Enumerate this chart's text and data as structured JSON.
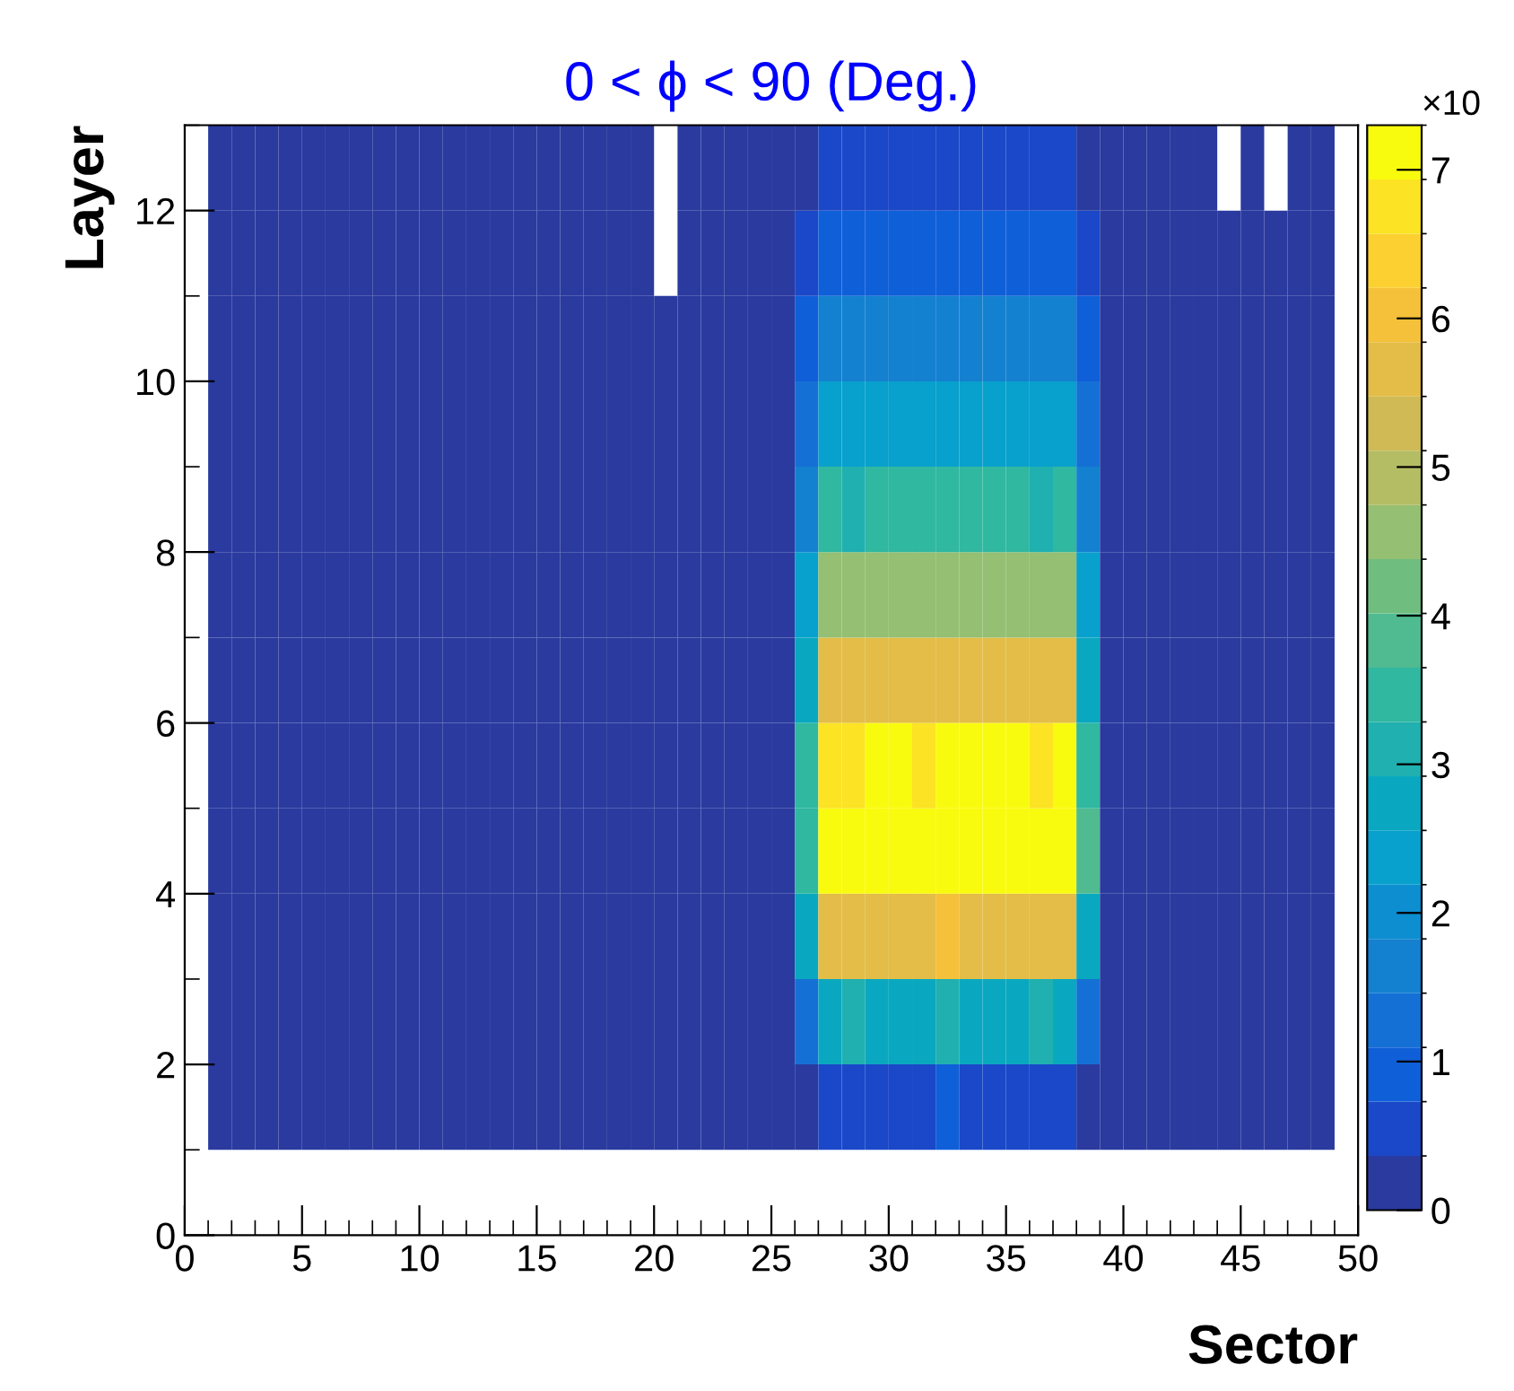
{
  "chart_data": {
    "type": "heatmap",
    "title": "0 < ϕ < 90 (Deg.)",
    "xlabel": "Sector",
    "ylabel": "Layer",
    "clabel": "×10",
    "x": [
      1.5,
      2.5,
      3.5,
      4.5,
      5.5,
      6.5,
      7.5,
      8.5,
      9.5,
      10.5,
      11.5,
      12.5,
      13.5,
      14.5,
      15.5,
      16.5,
      17.5,
      18.5,
      19.5,
      20.5,
      21.5,
      22.5,
      23.5,
      24.5,
      25.5,
      26.5,
      27.5,
      28.5,
      29.5,
      30.5,
      31.5,
      32.5,
      33.5,
      34.5,
      35.5,
      36.5,
      37.5,
      38.5,
      39.5,
      40.5,
      41.5,
      42.5,
      43.5,
      44.5,
      45.5,
      46.5,
      47.5,
      48.5
    ],
    "y": [
      12.5,
      11.5,
      10.5,
      9.5,
      8.5,
      7.5,
      6.5,
      5.5,
      4.5,
      3.5,
      2.5,
      1.5
    ],
    "cells": [
      [
        0.15,
        0.15,
        0.15,
        0.15,
        0.15,
        0.15,
        0.15,
        0.15,
        0.15,
        0.15,
        0.15,
        0.15,
        0.15,
        0.15,
        0.15,
        0.15,
        0.15,
        0.15,
        0.15,
        null,
        0.15,
        0.15,
        0.15,
        0.15,
        0.15,
        0.15,
        0.5,
        0.5,
        0.5,
        0.5,
        0.5,
        0.5,
        0.5,
        0.5,
        0.5,
        0.5,
        0.5,
        0.15,
        0.15,
        0.15,
        0.15,
        0.15,
        0.15,
        null,
        0.15,
        null,
        0.15,
        0.15
      ],
      [
        0.15,
        0.15,
        0.15,
        0.15,
        0.15,
        0.15,
        0.15,
        0.15,
        0.15,
        0.15,
        0.15,
        0.15,
        0.15,
        0.15,
        0.15,
        0.15,
        0.15,
        0.15,
        0.15,
        null,
        0.15,
        0.15,
        0.15,
        0.15,
        0.15,
        0.5,
        0.9,
        0.9,
        0.9,
        0.9,
        0.9,
        0.9,
        0.9,
        0.9,
        0.9,
        0.9,
        0.9,
        0.5,
        0.15,
        0.15,
        0.15,
        0.15,
        0.15,
        0.15,
        0.15,
        0.15,
        0.15,
        0.15
      ],
      [
        0.15,
        0.15,
        0.15,
        0.15,
        0.15,
        0.15,
        0.15,
        0.15,
        0.15,
        0.15,
        0.15,
        0.15,
        0.15,
        0.15,
        0.15,
        0.15,
        0.15,
        0.15,
        0.15,
        0.15,
        0.15,
        0.15,
        0.15,
        0.15,
        0.15,
        0.9,
        1.6,
        1.6,
        1.6,
        1.6,
        1.6,
        1.6,
        1.6,
        1.6,
        1.6,
        1.6,
        1.6,
        0.9,
        0.15,
        0.15,
        0.15,
        0.15,
        0.15,
        0.15,
        0.15,
        0.15,
        0.15,
        0.15
      ],
      [
        0.15,
        0.15,
        0.15,
        0.15,
        0.15,
        0.15,
        0.15,
        0.15,
        0.15,
        0.15,
        0.15,
        0.15,
        0.15,
        0.15,
        0.15,
        0.15,
        0.15,
        0.15,
        0.15,
        0.15,
        0.15,
        0.15,
        0.15,
        0.15,
        0.15,
        1.2,
        2.35,
        2.35,
        2.35,
        2.35,
        2.35,
        2.35,
        2.35,
        2.35,
        2.35,
        2.35,
        2.35,
        1.2,
        0.15,
        0.15,
        0.15,
        0.15,
        0.15,
        0.15,
        0.15,
        0.15,
        0.15,
        0.15
      ],
      [
        0.15,
        0.15,
        0.15,
        0.15,
        0.15,
        0.15,
        0.15,
        0.15,
        0.15,
        0.15,
        0.15,
        0.15,
        0.15,
        0.15,
        0.15,
        0.15,
        0.15,
        0.15,
        0.15,
        0.15,
        0.15,
        0.15,
        0.15,
        0.15,
        0.15,
        1.6,
        3.45,
        3.1,
        3.45,
        3.45,
        3.45,
        3.45,
        3.45,
        3.45,
        3.45,
        3.1,
        3.45,
        1.6,
        0.15,
        0.15,
        0.15,
        0.15,
        0.15,
        0.15,
        0.15,
        0.15,
        0.15,
        0.15
      ],
      [
        0.15,
        0.15,
        0.15,
        0.15,
        0.15,
        0.15,
        0.15,
        0.15,
        0.15,
        0.15,
        0.15,
        0.15,
        0.15,
        0.15,
        0.15,
        0.15,
        0.15,
        0.15,
        0.15,
        0.15,
        0.15,
        0.15,
        0.15,
        0.15,
        0.15,
        2.35,
        4.5,
        4.5,
        4.5,
        4.5,
        4.5,
        4.5,
        4.5,
        4.5,
        4.5,
        4.5,
        4.5,
        2.35,
        0.15,
        0.15,
        0.15,
        0.15,
        0.15,
        0.15,
        0.15,
        0.15,
        0.15,
        0.15
      ],
      [
        0.15,
        0.15,
        0.15,
        0.15,
        0.15,
        0.15,
        0.15,
        0.15,
        0.15,
        0.15,
        0.15,
        0.15,
        0.15,
        0.15,
        0.15,
        0.15,
        0.15,
        0.15,
        0.15,
        0.15,
        0.15,
        0.15,
        0.15,
        0.15,
        0.15,
        2.7,
        5.6,
        5.6,
        5.6,
        5.6,
        5.6,
        5.6,
        5.6,
        5.6,
        5.6,
        5.6,
        5.6,
        2.7,
        0.15,
        0.15,
        0.15,
        0.15,
        0.15,
        0.15,
        0.15,
        0.15,
        0.15,
        0.15
      ],
      [
        0.15,
        0.15,
        0.15,
        0.15,
        0.15,
        0.15,
        0.15,
        0.15,
        0.15,
        0.15,
        0.15,
        0.15,
        0.15,
        0.15,
        0.15,
        0.15,
        0.15,
        0.15,
        0.15,
        0.15,
        0.15,
        0.15,
        0.15,
        0.15,
        0.15,
        3.45,
        6.7,
        6.7,
        7.1,
        7.1,
        6.7,
        7.1,
        7.1,
        7.1,
        7.1,
        6.7,
        7.1,
        3.45,
        0.15,
        0.15,
        0.15,
        0.15,
        0.15,
        0.15,
        0.15,
        0.15,
        0.15,
        0.15
      ],
      [
        0.15,
        0.15,
        0.15,
        0.15,
        0.15,
        0.15,
        0.15,
        0.15,
        0.15,
        0.15,
        0.15,
        0.15,
        0.15,
        0.15,
        0.15,
        0.15,
        0.15,
        0.15,
        0.15,
        0.15,
        0.15,
        0.15,
        0.15,
        0.15,
        0.15,
        3.45,
        7.1,
        7.1,
        7.1,
        7.1,
        7.1,
        7.1,
        7.1,
        7.1,
        7.1,
        7.1,
        7.1,
        3.8,
        0.15,
        0.15,
        0.15,
        0.15,
        0.15,
        0.15,
        0.15,
        0.15,
        0.15,
        0.15
      ],
      [
        0.15,
        0.15,
        0.15,
        0.15,
        0.15,
        0.15,
        0.15,
        0.15,
        0.15,
        0.15,
        0.15,
        0.15,
        0.15,
        0.15,
        0.15,
        0.15,
        0.15,
        0.15,
        0.15,
        0.15,
        0.15,
        0.15,
        0.15,
        0.15,
        0.15,
        2.7,
        5.6,
        5.6,
        5.6,
        5.6,
        5.6,
        6.0,
        5.6,
        5.6,
        5.6,
        5.6,
        5.6,
        2.7,
        0.15,
        0.15,
        0.15,
        0.15,
        0.15,
        0.15,
        0.15,
        0.15,
        0.15,
        0.15
      ],
      [
        0.15,
        0.15,
        0.15,
        0.15,
        0.15,
        0.15,
        0.15,
        0.15,
        0.15,
        0.15,
        0.15,
        0.15,
        0.15,
        0.15,
        0.15,
        0.15,
        0.15,
        0.15,
        0.15,
        0.15,
        0.15,
        0.15,
        0.15,
        0.15,
        0.15,
        1.2,
        2.7,
        3.1,
        2.7,
        2.7,
        2.7,
        3.1,
        2.7,
        2.7,
        2.7,
        3.1,
        2.7,
        1.2,
        0.15,
        0.15,
        0.15,
        0.15,
        0.15,
        0.15,
        0.15,
        0.15,
        0.15,
        0.15
      ],
      [
        0.15,
        0.15,
        0.15,
        0.15,
        0.15,
        0.15,
        0.15,
        0.15,
        0.15,
        0.15,
        0.15,
        0.15,
        0.15,
        0.15,
        0.15,
        0.15,
        0.15,
        0.15,
        0.15,
        0.15,
        0.15,
        0.15,
        0.15,
        0.15,
        0.15,
        0.15,
        0.5,
        0.5,
        0.5,
        0.5,
        0.5,
        0.9,
        0.5,
        0.5,
        0.5,
        0.5,
        0.5,
        0.15,
        0.15,
        0.15,
        0.15,
        0.15,
        0.15,
        0.15,
        0.15,
        0.15,
        0.15,
        0.15
      ]
    ],
    "xlim": [
      0,
      50
    ],
    "xticks": [
      0,
      5,
      10,
      15,
      20,
      25,
      30,
      35,
      40,
      45,
      50
    ],
    "ylim": [
      0,
      13
    ],
    "yticks": [
      0,
      2,
      4,
      6,
      8,
      10,
      12
    ],
    "clim": [
      0,
      7.3
    ],
    "cticks": [
      0,
      1,
      2,
      3,
      4,
      5,
      6,
      7
    ],
    "grid": false
  }
}
